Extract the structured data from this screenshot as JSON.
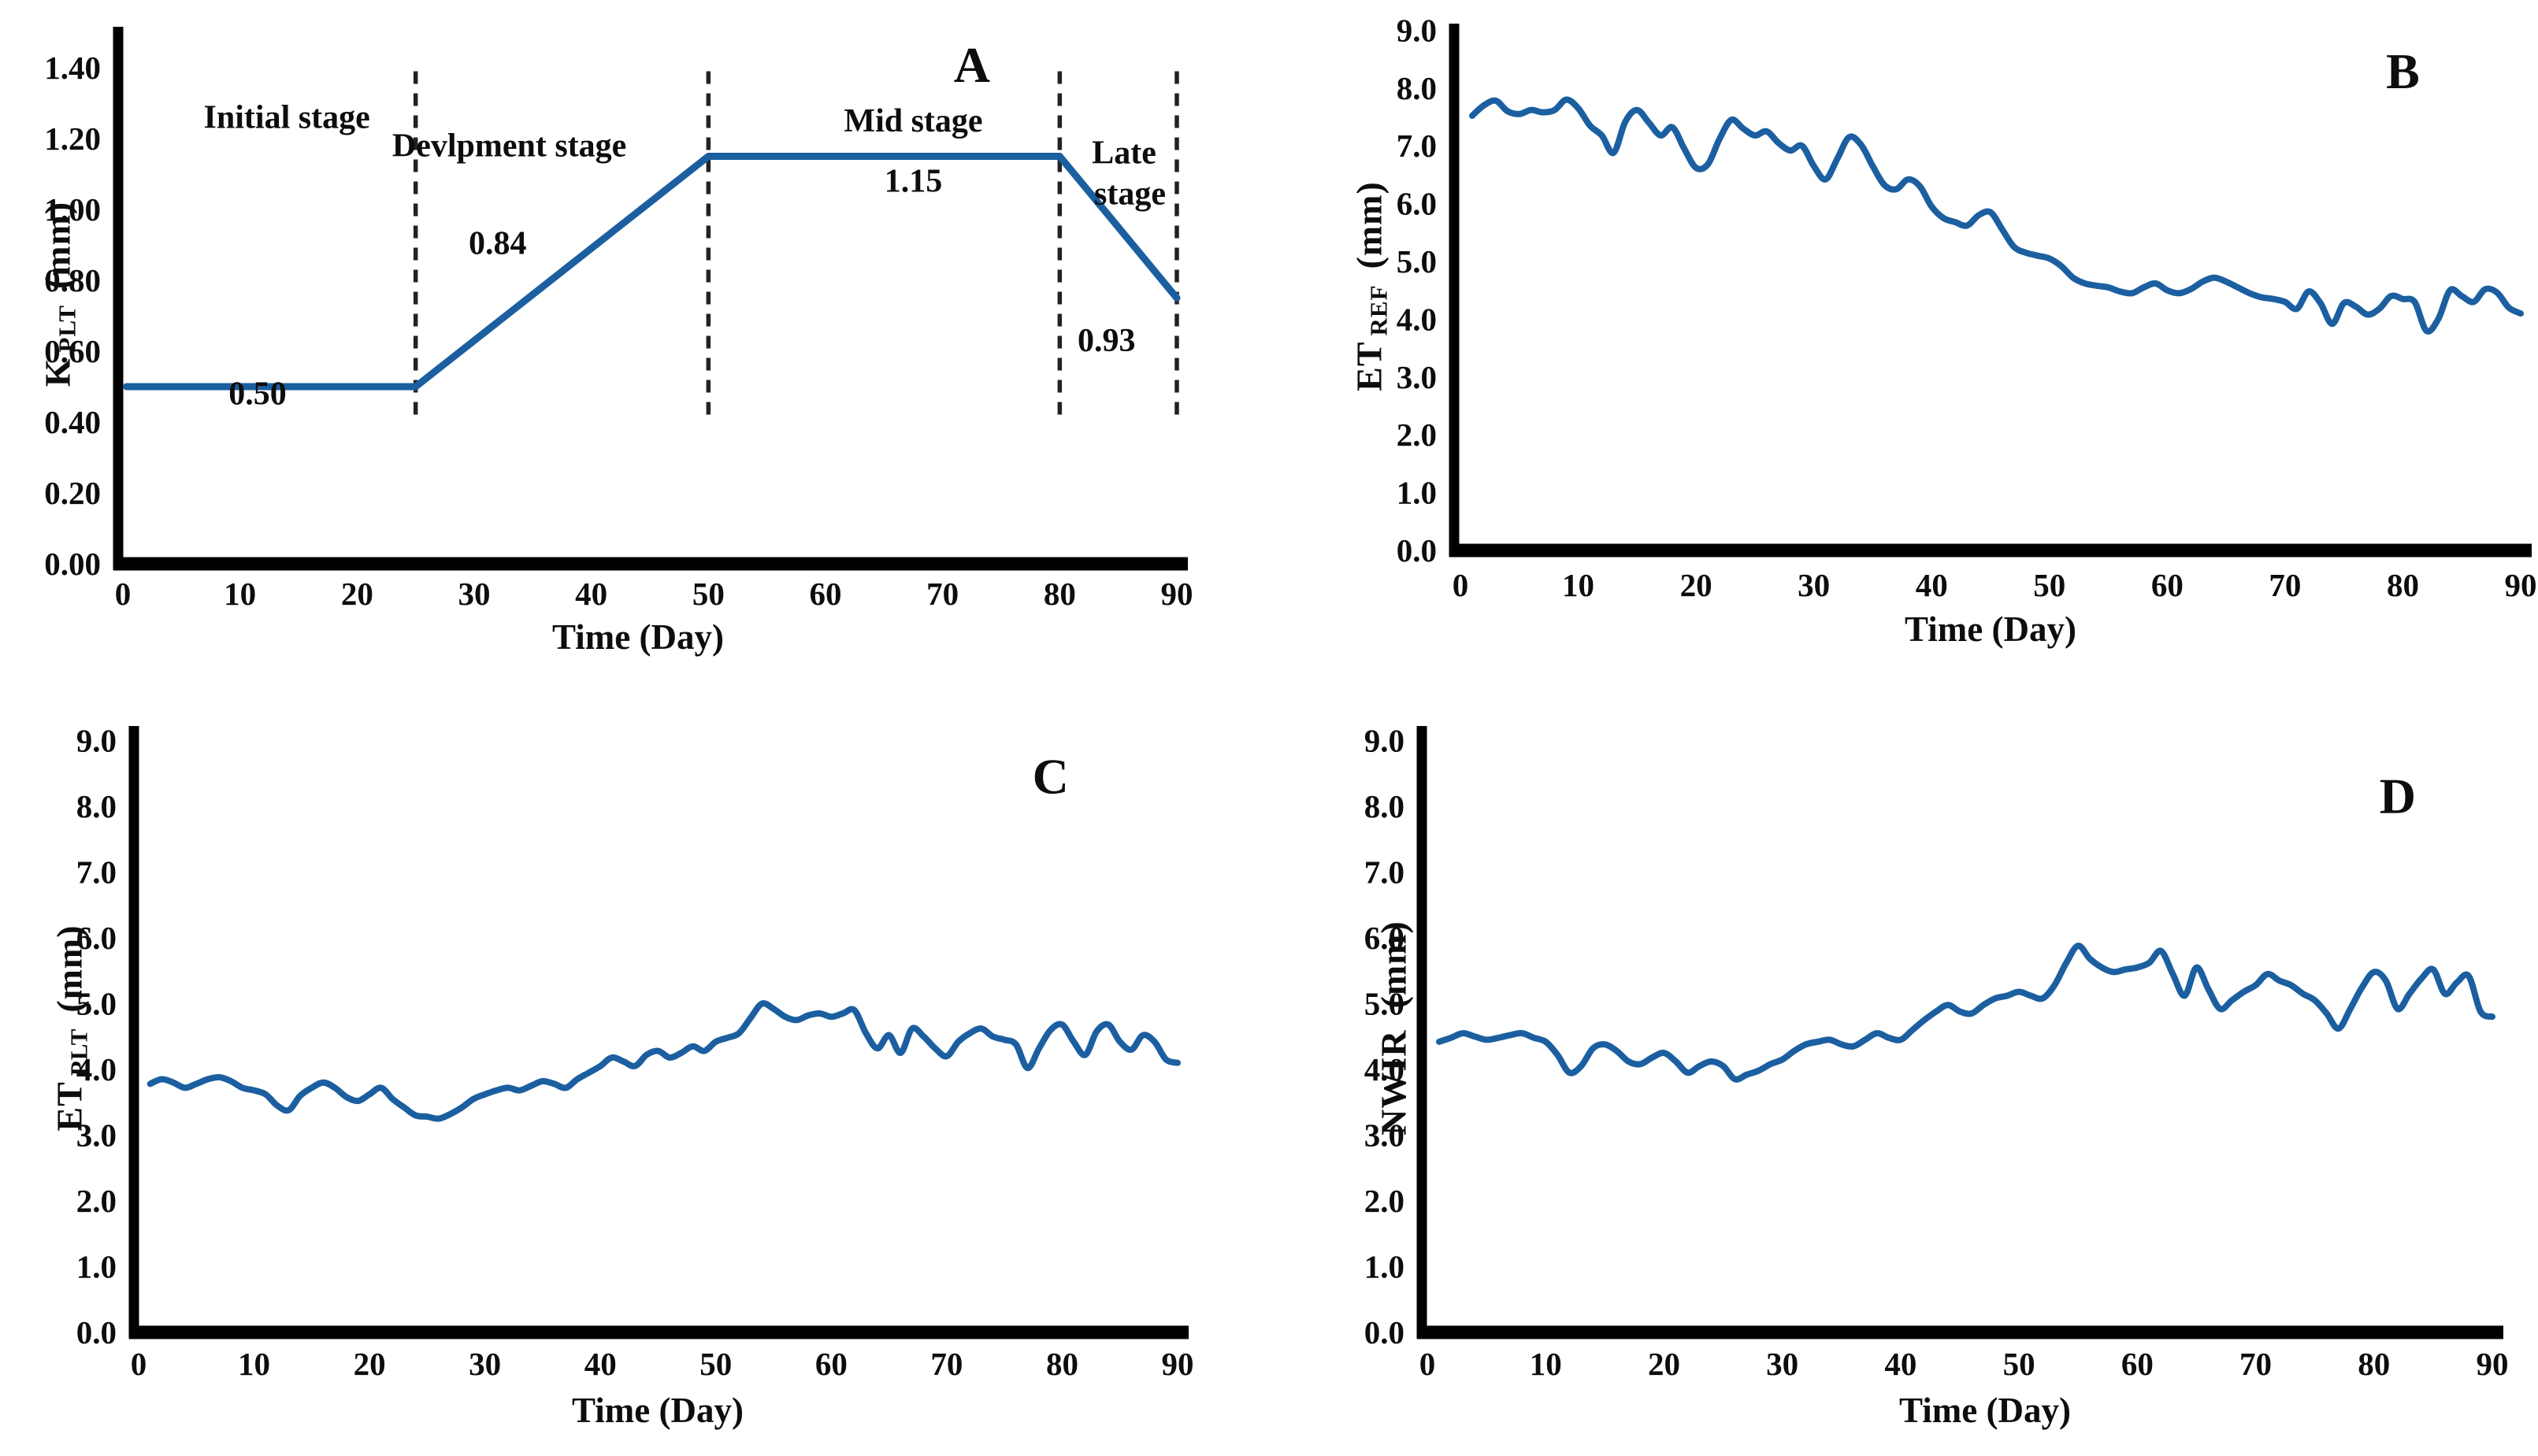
{
  "figure": {
    "description": "Four-panel crop water use figure: crop coefficient stages (A), reference evapotranspiration (B), plant evapotranspiration (C) and net water irrigation requirement (D) over a 90-day season",
    "line_color": "#1b5fa0",
    "dash_color": "#222222",
    "text_color": "#0d0d0d"
  },
  "chart_data": [
    {
      "panel": "A",
      "type": "line",
      "letter": {
        "text": "A",
        "x": 72.5,
        "y": 1.36
      },
      "xlabel": "Time (Day)",
      "ylabel": {
        "main": "K",
        "sub": "PLT",
        "unit": "(mm)"
      },
      "xlim": [
        0,
        90
      ],
      "ylim": [
        0,
        1.5
      ],
      "xticks": [
        "0",
        "10",
        "20",
        "30",
        "40",
        "50",
        "60",
        "70",
        "80",
        "90"
      ],
      "xtick_values": [
        0,
        10,
        20,
        30,
        40,
        50,
        60,
        70,
        80,
        90
      ],
      "yticks": [
        "0.00",
        "0.20",
        "0.40",
        "0.60",
        "0.80",
        "1.00",
        "1.20",
        "1.40"
      ],
      "ytick_values": [
        0,
        0.2,
        0.4,
        0.6,
        0.8,
        1.0,
        1.2,
        1.4
      ],
      "x": [
        0.3,
        25,
        50,
        80,
        90
      ],
      "values": [
        0.5,
        0.5,
        1.15,
        1.15,
        0.75
      ],
      "smooth": false,
      "dashed_verticals": {
        "x": [
          25,
          50,
          80,
          90
        ],
        "y_from": 0.4,
        "y_to": 1.39
      },
      "annotations": [
        {
          "text": "Initial stage",
          "x": 14,
          "y": 1.23
        },
        {
          "text": "Devlpment stage",
          "x": 33,
          "y": 1.15
        },
        {
          "text": "Mid stage",
          "x": 67.5,
          "y": 1.22
        },
        {
          "text": "1.15",
          "x": 67.5,
          "y": 1.05
        },
        {
          "text": "Late",
          "x": 85.5,
          "y": 1.13
        },
        {
          "text": "stage",
          "x": 86,
          "y": 1.015
        },
        {
          "text": "0.84",
          "x": 32,
          "y": 0.875
        },
        {
          "text": "0.50",
          "x": 11.5,
          "y": 0.45
        },
        {
          "text": "0.93",
          "x": 84,
          "y": 0.6
        }
      ],
      "stage_values": {
        "initial": 0.5,
        "development": 0.84,
        "mid": 1.15,
        "late": 0.93
      }
    },
    {
      "panel": "B",
      "type": "line",
      "letter": {
        "text": "B",
        "x": 80,
        "y": 8.0
      },
      "xlabel": "Time (Day)",
      "ylabel": {
        "main": "ET",
        "sub": "REF",
        "unit": "(mm)"
      },
      "xlim": [
        0,
        90
      ],
      "ylim": [
        0,
        9.0
      ],
      "xticks": [
        "0",
        "10",
        "20",
        "30",
        "40",
        "50",
        "60",
        "70",
        "80",
        "90"
      ],
      "xtick_values": [
        0,
        10,
        20,
        30,
        40,
        50,
        60,
        70,
        80,
        90
      ],
      "yticks": [
        "0.0",
        "1.0",
        "2.0",
        "3.0",
        "4.0",
        "5.0",
        "6.0",
        "7.0",
        "8.0",
        "9.0"
      ],
      "ytick_values": [
        0,
        1,
        2,
        3,
        4,
        5,
        6,
        7,
        8,
        9
      ],
      "x_start": 1,
      "x_step": 1,
      "smooth": true,
      "values": [
        7.52,
        7.7,
        7.78,
        7.6,
        7.55,
        7.62,
        7.58,
        7.62,
        7.8,
        7.65,
        7.35,
        7.18,
        6.88,
        7.42,
        7.62,
        7.4,
        7.18,
        7.32,
        6.95,
        6.62,
        6.68,
        7.12,
        7.45,
        7.3,
        7.18,
        7.25,
        7.05,
        6.92,
        7.0,
        6.65,
        6.42,
        6.78,
        7.15,
        7.02,
        6.65,
        6.32,
        6.25,
        6.42,
        6.3,
        5.95,
        5.75,
        5.68,
        5.62,
        5.8,
        5.85,
        5.55,
        5.25,
        5.15,
        5.1,
        5.05,
        4.92,
        4.72,
        4.62,
        4.58,
        4.55,
        4.48,
        4.45,
        4.55,
        4.62,
        4.5,
        4.45,
        4.52,
        4.65,
        4.72,
        4.65,
        4.55,
        4.45,
        4.38,
        4.35,
        4.3,
        4.18,
        4.48,
        4.28,
        3.92,
        4.28,
        4.22,
        4.08,
        4.18,
        4.4,
        4.35,
        4.3,
        3.8,
        4.0,
        4.5,
        4.4,
        4.3,
        4.52,
        4.46,
        4.2,
        4.1
      ]
    },
    {
      "panel": "C",
      "type": "line",
      "letter": {
        "text": "C",
        "x": 79,
        "y": 8.2
      },
      "xlabel": "Time (Day)",
      "ylabel": {
        "main": "ET",
        "sub": "PLT",
        "unit": "(mm)"
      },
      "xlim": [
        0,
        90
      ],
      "ylim": [
        0,
        9.0
      ],
      "xticks": [
        "0",
        "10",
        "20",
        "30",
        "40",
        "50",
        "60",
        "70",
        "80",
        "90"
      ],
      "xtick_values": [
        0,
        10,
        20,
        30,
        40,
        50,
        60,
        70,
        80,
        90
      ],
      "yticks": [
        "0.0",
        "1.0",
        "2.0",
        "3.0",
        "4.0",
        "5.0",
        "6.0",
        "7.0",
        "8.0",
        "9.0"
      ],
      "ytick_values": [
        0,
        1,
        2,
        3,
        4,
        5,
        6,
        7,
        8,
        9
      ],
      "x_start": 1,
      "x_step": 1,
      "smooth": true,
      "values": [
        3.78,
        3.85,
        3.8,
        3.72,
        3.78,
        3.85,
        3.88,
        3.82,
        3.72,
        3.68,
        3.62,
        3.45,
        3.38,
        3.6,
        3.72,
        3.8,
        3.72,
        3.58,
        3.52,
        3.62,
        3.72,
        3.55,
        3.42,
        3.3,
        3.28,
        3.25,
        3.32,
        3.42,
        3.55,
        3.62,
        3.68,
        3.72,
        3.68,
        3.75,
        3.82,
        3.78,
        3.72,
        3.85,
        3.95,
        4.05,
        4.18,
        4.12,
        4.05,
        4.22,
        4.28,
        4.18,
        4.25,
        4.35,
        4.28,
        4.42,
        4.48,
        4.55,
        4.78,
        5.0,
        4.92,
        4.8,
        4.75,
        4.82,
        4.85,
        4.8,
        4.85,
        4.9,
        4.55,
        4.32,
        4.52,
        4.25,
        4.62,
        4.5,
        4.32,
        4.2,
        4.42,
        4.55,
        4.62,
        4.5,
        4.45,
        4.38,
        4.02,
        4.32,
        4.6,
        4.68,
        4.42,
        4.22,
        4.58,
        4.68,
        4.42,
        4.3,
        4.52,
        4.42,
        4.15,
        4.1
      ]
    },
    {
      "panel": "D",
      "type": "line",
      "letter": {
        "text": "D",
        "x": 82,
        "y": 7.9
      },
      "xlabel": "Time (Day)",
      "ylabel": {
        "main": "NWIR",
        "sub": "",
        "unit": "(mm)"
      },
      "xlim": [
        0,
        90
      ],
      "ylim": [
        0,
        9.0
      ],
      "xticks": [
        "0",
        "10",
        "20",
        "30",
        "40",
        "50",
        "60",
        "70",
        "80",
        "90"
      ],
      "xtick_values": [
        0,
        10,
        20,
        30,
        40,
        50,
        60,
        70,
        80,
        90
      ],
      "yticks": [
        "0.0",
        "1.0",
        "2.0",
        "3.0",
        "4.0",
        "5.0",
        "6.0",
        "7.0",
        "8.0",
        "9.0"
      ],
      "ytick_values": [
        0,
        1,
        2,
        3,
        4,
        5,
        6,
        7,
        8,
        9
      ],
      "x_start": 1,
      "x_step": 1,
      "smooth": true,
      "values": [
        4.42,
        4.48,
        4.55,
        4.5,
        4.45,
        4.48,
        4.52,
        4.55,
        4.48,
        4.42,
        4.22,
        3.95,
        4.05,
        4.32,
        4.38,
        4.28,
        4.12,
        4.08,
        4.18,
        4.25,
        4.12,
        3.95,
        4.05,
        4.12,
        4.05,
        3.85,
        3.92,
        3.98,
        4.08,
        4.15,
        4.28,
        4.38,
        4.42,
        4.45,
        4.38,
        4.35,
        4.45,
        4.55,
        4.48,
        4.45,
        4.6,
        4.75,
        4.88,
        4.98,
        4.88,
        4.85,
        4.98,
        5.08,
        5.12,
        5.18,
        5.12,
        5.08,
        5.28,
        5.62,
        5.88,
        5.68,
        5.55,
        5.48,
        5.52,
        5.55,
        5.62,
        5.8,
        5.45,
        5.12,
        5.55,
        5.22,
        4.92,
        5.05,
        5.18,
        5.28,
        5.45,
        5.35,
        5.28,
        5.15,
        5.05,
        4.85,
        4.62,
        4.92,
        5.25,
        5.48,
        5.35,
        4.92,
        5.15,
        5.38,
        5.52,
        5.15,
        5.32,
        5.42,
        4.88,
        4.8
      ]
    }
  ]
}
